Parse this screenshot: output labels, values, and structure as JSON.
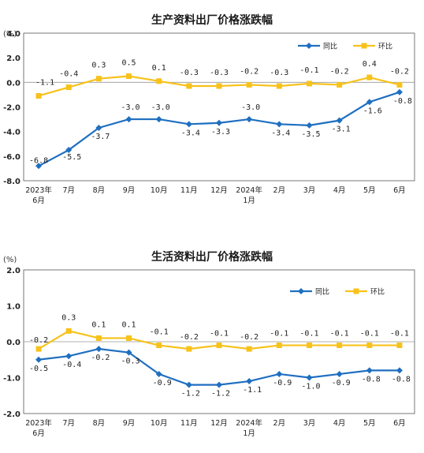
{
  "chart_data": [
    {
      "type": "line",
      "title": "生产资料出厂价格涨跌幅",
      "unit_label": "(%)",
      "categories": [
        "2023年\n6月",
        "7月",
        "8月",
        "9月",
        "10月",
        "11月",
        "12月",
        "2024年\n1月",
        "2月",
        "3月",
        "4月",
        "5月",
        "6月"
      ],
      "ylim": [
        -8.0,
        4.0
      ],
      "yticks": [
        "4.0",
        "2.0",
        "0.0",
        "-2.0",
        "-4.0",
        "-6.0",
        "-8.0"
      ],
      "ytick_values": [
        4.0,
        2.0,
        0.0,
        -2.0,
        -4.0,
        -6.0,
        -8.0
      ],
      "legend_position": "top-right",
      "series": [
        {
          "name": "同比",
          "color": "#1f6fc0",
          "marker": "diamond",
          "values": [
            -6.8,
            -5.5,
            -3.7,
            -3.0,
            -3.0,
            -3.4,
            -3.3,
            -3.0,
            -3.4,
            -3.5,
            -3.1,
            -1.6,
            -0.8
          ],
          "labels": [
            "-6.8",
            "-5.5",
            "-3.7",
            "-3.0",
            "-3.0",
            "-3.4",
            "-3.3",
            "-3.0",
            "-3.4",
            "-3.5",
            "-3.1",
            "-1.6",
            "-0.8"
          ]
        },
        {
          "name": "环比",
          "color": "#f7c21a",
          "marker": "square",
          "values": [
            -1.1,
            -0.4,
            0.3,
            0.5,
            0.1,
            -0.3,
            -0.3,
            -0.2,
            -0.3,
            -0.1,
            -0.2,
            0.4,
            -0.2
          ],
          "labels": [
            "-1.1",
            "-0.4",
            "0.3",
            "0.5",
            "0.1",
            "-0.3",
            "-0.3",
            "-0.2",
            "-0.3",
            "-0.1",
            "-0.2",
            "0.4",
            "-0.2"
          ]
        }
      ]
    },
    {
      "type": "line",
      "title": "生活资料出厂价格涨跌幅",
      "unit_label": "(%)",
      "categories": [
        "2023年\n6月",
        "7月",
        "8月",
        "9月",
        "10月",
        "11月",
        "12月",
        "2024年\n1月",
        "2月",
        "3月",
        "4月",
        "5月",
        "6月"
      ],
      "ylim": [
        -2.0,
        2.0
      ],
      "yticks": [
        "2.0",
        "1.0",
        "0.0",
        "-1.0",
        "-2.0"
      ],
      "ytick_values": [
        2.0,
        1.0,
        0.0,
        -1.0,
        -2.0
      ],
      "legend_position": "top-right",
      "series": [
        {
          "name": "同比",
          "color": "#1f6fc0",
          "marker": "diamond",
          "values": [
            -0.5,
            -0.4,
            -0.2,
            -0.3,
            -0.9,
            -1.2,
            -1.2,
            -1.1,
            -0.9,
            -1.0,
            -0.9,
            -0.8,
            -0.8
          ],
          "labels": [
            "-0.5",
            "-0.4",
            "-0.2",
            "-0.3",
            "-0.9",
            "-1.2",
            "-1.2",
            "-1.1",
            "-0.9",
            "-1.0",
            "-0.9",
            "-0.8",
            "-0.8"
          ]
        },
        {
          "name": "环比",
          "color": "#f7c21a",
          "marker": "square",
          "values": [
            -0.2,
            0.3,
            0.1,
            0.1,
            -0.1,
            -0.2,
            -0.1,
            -0.2,
            -0.1,
            -0.1,
            -0.1,
            -0.1,
            -0.1
          ],
          "labels": [
            "-0.2",
            "0.3",
            "0.1",
            "0.1",
            "-0.1",
            "-0.2",
            "-0.1",
            "-0.2",
            "-0.1",
            "-0.1",
            "-0.1",
            "-0.1",
            "-0.1"
          ]
        }
      ]
    }
  ]
}
